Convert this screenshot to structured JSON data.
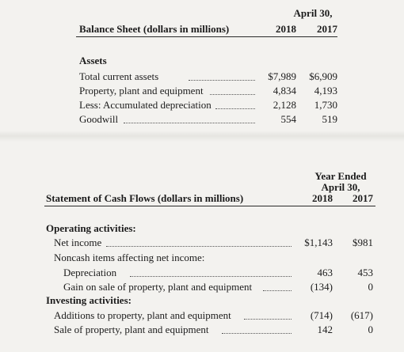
{
  "balance_sheet": {
    "title": "Balance Sheet (dollars in millions)",
    "period": "April 30,",
    "years": [
      "2018",
      "2017"
    ],
    "section": "Assets",
    "rows": [
      {
        "label": "Total current assets",
        "v2018": "$7,989",
        "v2017": "$6,909"
      },
      {
        "label": "Property, plant and equipment",
        "v2018": "4,834",
        "v2017": "4,193"
      },
      {
        "label": "Less: Accumulated depreciation",
        "v2018": "2,128",
        "v2017": "1,730"
      },
      {
        "label": "Goodwill",
        "v2018": "554",
        "v2017": "519"
      }
    ]
  },
  "cash_flows": {
    "title": "Statement of Cash Flows (dollars in millions)",
    "period_line1": "Year Ended",
    "period_line2": "April 30,",
    "years": [
      "2018",
      "2017"
    ],
    "operating": {
      "heading": "Operating activities:",
      "net_income": {
        "label": "Net income",
        "v2018": "$1,143",
        "v2017": "$981"
      },
      "noncash_heading": "Noncash items affecting net income:",
      "depreciation": {
        "label": "Depreciation",
        "v2018": "463",
        "v2017": "453"
      },
      "gain": {
        "label": "Gain on sale of property, plant and equipment",
        "v2018": "(134)",
        "v2017": "0"
      }
    },
    "investing": {
      "heading": "Investing activities:",
      "additions": {
        "label": "Additions to property, plant and equipment",
        "v2018": "(714)",
        "v2017": "(617)"
      },
      "sale": {
        "label": "Sale of property, plant and equipment",
        "v2018": "142",
        "v2017": "0"
      }
    }
  }
}
